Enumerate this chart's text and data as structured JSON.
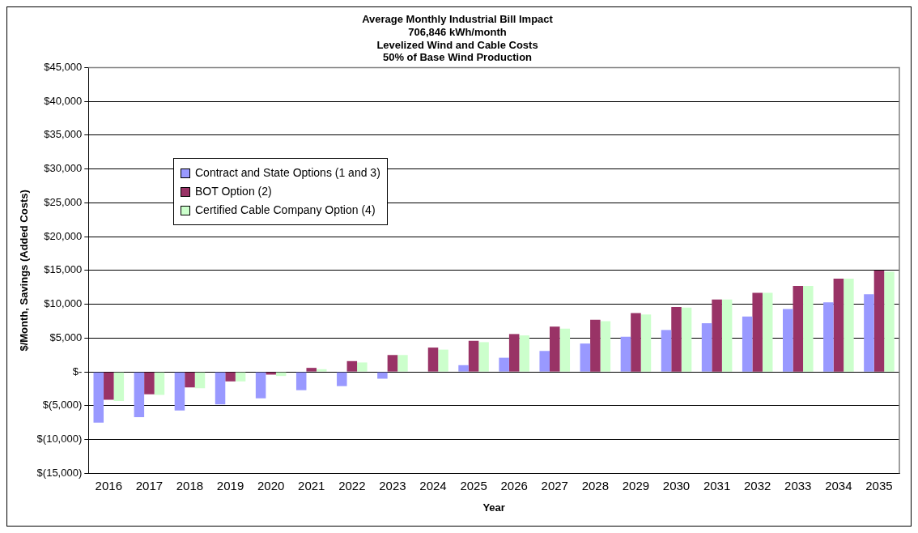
{
  "chart_data": {
    "type": "bar",
    "title": "Average Monthly Industrial Bill Impact",
    "subtitle": "706,846 kWh/month\nLevelized Wind and Cable Costs\n50% of Base Wind Production",
    "xlabel": "Year",
    "ylabel": "$/Month, Savings (Added Costs)",
    "categories": [
      "2016",
      "2017",
      "2018",
      "2019",
      "2020",
      "2021",
      "2022",
      "2023",
      "2024",
      "2025",
      "2026",
      "2027",
      "2028",
      "2029",
      "2030",
      "2031",
      "2032",
      "2033",
      "2034",
      "2035"
    ],
    "series": [
      {
        "name": "Contract and State Options (1 and 3)",
        "color": "#9999ff",
        "values": [
          -7500,
          -6700,
          -5700,
          -4800,
          -3900,
          -2700,
          -2100,
          -1000,
          0,
          1000,
          2100,
          3100,
          4200,
          5200,
          6200,
          7200,
          8200,
          9300,
          10300,
          11500
        ]
      },
      {
        "name": "BOT Option (2)",
        "color": "#993366",
        "values": [
          -4100,
          -3300,
          -2300,
          -1400,
          -400,
          600,
          1600,
          2500,
          3600,
          4600,
          5600,
          6700,
          7700,
          8700,
          9600,
          10700,
          11700,
          12700,
          13800,
          15000
        ]
      },
      {
        "name": "Certified Cable Company Option (4)",
        "color": "#ccffcc",
        "values": [
          -4300,
          -3400,
          -2400,
          -1400,
          -600,
          400,
          1400,
          2500,
          3300,
          4400,
          5400,
          6400,
          7500,
          8500,
          9500,
          10700,
          11700,
          12700,
          13800,
          14800
        ]
      }
    ],
    "ylim": [
      -15000,
      45000
    ],
    "yticks": [
      {
        "value": -15000,
        "label": "$(15,000)"
      },
      {
        "value": -10000,
        "label": "$(10,000)"
      },
      {
        "value": -5000,
        "label": "$(5,000)"
      },
      {
        "value": 0,
        "label": "$-"
      },
      {
        "value": 5000,
        "label": "$5,000"
      },
      {
        "value": 10000,
        "label": "$10,000"
      },
      {
        "value": 15000,
        "label": "$15,000"
      },
      {
        "value": 20000,
        "label": "$20,000"
      },
      {
        "value": 25000,
        "label": "$25,000"
      },
      {
        "value": 30000,
        "label": "$30,000"
      },
      {
        "value": 35000,
        "label": "$35,000"
      },
      {
        "value": 40000,
        "label": "$40,000"
      },
      {
        "value": 45000,
        "label": "$45,000"
      }
    ],
    "grid": "y",
    "legend": "top left"
  }
}
